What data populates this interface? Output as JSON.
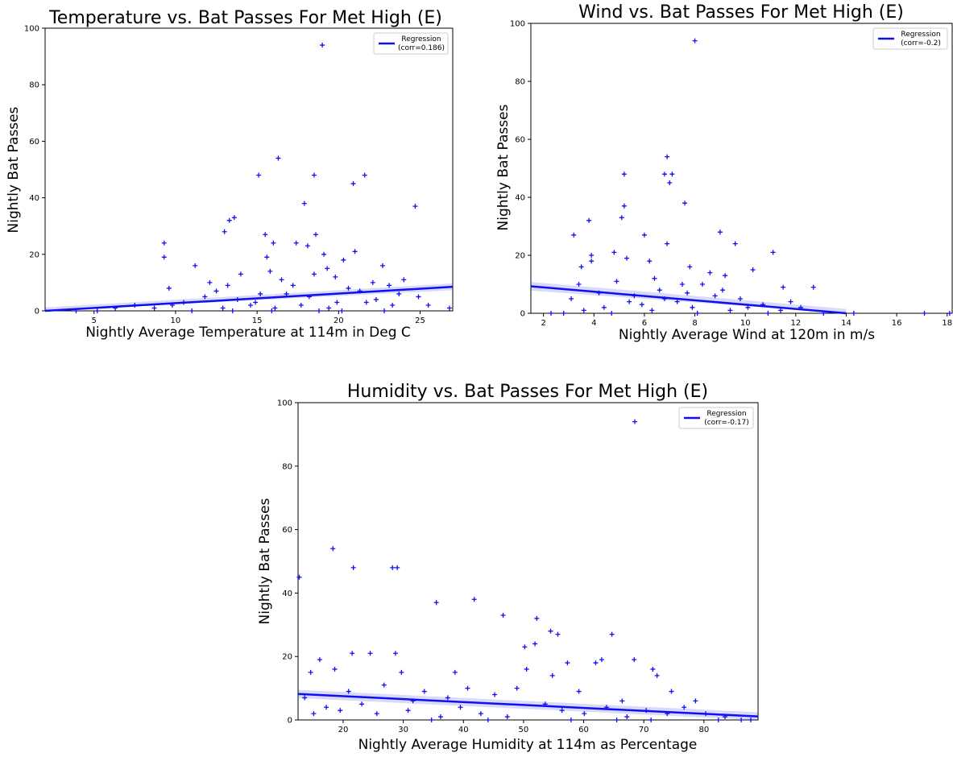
{
  "chart_data": [
    {
      "type": "scatter",
      "title": "Temperature vs. Bat Passes For Met High (E)",
      "xlabel": "Nightly Average Temperature at 114m in Deg C",
      "ylabel": "Nightly Bat Passes",
      "xlim": [
        2,
        27
      ],
      "ylim": [
        0,
        100
      ],
      "xticks": [
        5,
        10,
        15,
        20,
        25
      ],
      "yticks": [
        0,
        20,
        40,
        60,
        80,
        100
      ],
      "legend": {
        "line1": "Regression",
        "line2": "(corr=0.186)",
        "position": "top-right"
      },
      "regression": {
        "x": [
          2,
          27
        ],
        "y": [
          0.0,
          8.5
        ],
        "band": 1.2
      },
      "marker_color": "#1010ee",
      "points": [
        [
          19,
          94
        ],
        [
          16.3,
          54
        ],
        [
          15.1,
          48
        ],
        [
          18.5,
          48
        ],
        [
          21.6,
          48
        ],
        [
          20.9,
          45
        ],
        [
          17.9,
          38
        ],
        [
          24.7,
          37
        ],
        [
          13.6,
          33
        ],
        [
          13.3,
          32
        ],
        [
          13,
          28
        ],
        [
          15.5,
          27
        ],
        [
          18.6,
          27
        ],
        [
          9.3,
          24
        ],
        [
          16,
          24
        ],
        [
          17.4,
          24
        ],
        [
          18.1,
          23
        ],
        [
          9.3,
          19
        ],
        [
          15.6,
          19
        ],
        [
          19.1,
          20
        ],
        [
          21,
          21
        ],
        [
          11.2,
          16
        ],
        [
          22.7,
          16
        ],
        [
          20.3,
          18
        ],
        [
          15.8,
          14
        ],
        [
          18.5,
          13
        ],
        [
          14,
          13
        ],
        [
          19.3,
          15
        ],
        [
          9.6,
          8
        ],
        [
          12.1,
          10
        ],
        [
          13.2,
          9
        ],
        [
          16.5,
          11
        ],
        [
          22.1,
          10
        ],
        [
          19.8,
          12
        ],
        [
          17.2,
          9
        ],
        [
          24,
          11
        ],
        [
          12.5,
          7
        ],
        [
          15.2,
          6
        ],
        [
          21.3,
          7
        ],
        [
          23.1,
          9
        ],
        [
          10.5,
          3
        ],
        [
          11.8,
          5
        ],
        [
          13.8,
          4
        ],
        [
          14.6,
          2
        ],
        [
          16.8,
          6
        ],
        [
          18.2,
          5
        ],
        [
          19.9,
          3
        ],
        [
          20.6,
          8
        ],
        [
          22.3,
          4
        ],
        [
          23.7,
          6
        ],
        [
          25.5,
          2
        ],
        [
          8.7,
          1
        ],
        [
          7.5,
          2
        ],
        [
          6.3,
          1
        ],
        [
          5.2,
          0
        ],
        [
          3.9,
          0
        ],
        [
          9.8,
          2
        ],
        [
          12.9,
          1
        ],
        [
          14.9,
          3
        ],
        [
          16.1,
          1
        ],
        [
          17.7,
          2
        ],
        [
          19.4,
          1
        ],
        [
          21.7,
          3
        ],
        [
          23.3,
          2
        ],
        [
          24.9,
          5
        ],
        [
          26.8,
          1
        ],
        [
          11,
          0
        ],
        [
          13.5,
          0
        ],
        [
          15.9,
          0
        ],
        [
          18.8,
          0
        ],
        [
          20.2,
          0
        ],
        [
          22.8,
          0
        ]
      ]
    },
    {
      "type": "scatter",
      "title": "Wind vs. Bat Passes For Met High (E)",
      "xlabel": "Nightly Average Wind at 120m in m/s",
      "ylabel": "Nightly Bat Passes",
      "xlim": [
        1.5,
        18.2
      ],
      "ylim": [
        0,
        100
      ],
      "xticks": [
        2,
        4,
        6,
        8,
        10,
        12,
        14,
        16,
        18
      ],
      "yticks": [
        0,
        20,
        40,
        60,
        80,
        100
      ],
      "legend": {
        "line1": "Regression",
        "line2": "(corr=-0.2)",
        "position": "top-right"
      },
      "regression": {
        "x": [
          1.5,
          14
        ],
        "y": [
          9.3,
          0.0
        ],
        "band": 1.5
      },
      "marker_color": "#1010ee",
      "points": [
        [
          8,
          94
        ],
        [
          6.9,
          54
        ],
        [
          6.8,
          48
        ],
        [
          7.1,
          48
        ],
        [
          5.2,
          48
        ],
        [
          7,
          45
        ],
        [
          7.6,
          38
        ],
        [
          5.2,
          37
        ],
        [
          3.8,
          32
        ],
        [
          5.1,
          33
        ],
        [
          3.2,
          27
        ],
        [
          9,
          28
        ],
        [
          6,
          27
        ],
        [
          6.9,
          24
        ],
        [
          9.6,
          24
        ],
        [
          4.8,
          21
        ],
        [
          3.9,
          20
        ],
        [
          11.1,
          21
        ],
        [
          5.3,
          19
        ],
        [
          3.9,
          18
        ],
        [
          6.2,
          18
        ],
        [
          3.5,
          16
        ],
        [
          7.8,
          16
        ],
        [
          8.6,
          14
        ],
        [
          10.3,
          15
        ],
        [
          6.4,
          12
        ],
        [
          9.2,
          13
        ],
        [
          4.9,
          11
        ],
        [
          7.5,
          10
        ],
        [
          11.5,
          9
        ],
        [
          12.7,
          9
        ],
        [
          8.3,
          10
        ],
        [
          3.1,
          5
        ],
        [
          4.2,
          7
        ],
        [
          5.6,
          6
        ],
        [
          6.6,
          8
        ],
        [
          7.3,
          4
        ],
        [
          8.8,
          6
        ],
        [
          9.8,
          5
        ],
        [
          10.7,
          3
        ],
        [
          2.8,
          0
        ],
        [
          3.6,
          1
        ],
        [
          4.4,
          2
        ],
        [
          5.9,
          3
        ],
        [
          6.3,
          1
        ],
        [
          7.9,
          2
        ],
        [
          9.4,
          1
        ],
        [
          10.1,
          2
        ],
        [
          11.4,
          1
        ],
        [
          12.2,
          2
        ],
        [
          13.1,
          0
        ],
        [
          14.3,
          0
        ],
        [
          17.1,
          0
        ],
        [
          18.1,
          0
        ],
        [
          2.3,
          0
        ],
        [
          4.7,
          0
        ],
        [
          8.1,
          0
        ],
        [
          10.9,
          0
        ],
        [
          5.4,
          4
        ],
        [
          7.7,
          7
        ],
        [
          9.1,
          8
        ],
        [
          6.8,
          5
        ],
        [
          3.4,
          10
        ],
        [
          11.8,
          4
        ]
      ]
    },
    {
      "type": "scatter",
      "title": "Humidity vs. Bat Passes For Met High (E)",
      "xlabel": "Nightly Average Humidity at 114m as Percentage",
      "ylabel": "Nightly Bat Passes",
      "xlim": [
        12.5,
        89
      ],
      "ylim": [
        0,
        100
      ],
      "xticks": [
        20,
        30,
        40,
        50,
        60,
        70,
        80
      ],
      "yticks": [
        0,
        20,
        40,
        60,
        80,
        100
      ],
      "legend": {
        "line1": "Regression",
        "line2": "(corr=-0.17)",
        "position": "top-right"
      },
      "regression": {
        "x": [
          12.5,
          89
        ],
        "y": [
          8.2,
          1.1
        ],
        "band": 1.3
      },
      "marker_color": "#1010ee",
      "points": [
        [
          68.5,
          94
        ],
        [
          18.3,
          54
        ],
        [
          21.7,
          48
        ],
        [
          28.2,
          48
        ],
        [
          29,
          48
        ],
        [
          12.7,
          45
        ],
        [
          41.8,
          38
        ],
        [
          35.5,
          37
        ],
        [
          46.6,
          33
        ],
        [
          52.2,
          32
        ],
        [
          54.5,
          28
        ],
        [
          55.7,
          27
        ],
        [
          64.7,
          27
        ],
        [
          50.2,
          23
        ],
        [
          51.9,
          24
        ],
        [
          62,
          18
        ],
        [
          63,
          19
        ],
        [
          68.4,
          19
        ],
        [
          71.5,
          16
        ],
        [
          72.2,
          14
        ],
        [
          21.5,
          21
        ],
        [
          24.5,
          21
        ],
        [
          28.7,
          21
        ],
        [
          16.1,
          19
        ],
        [
          18.6,
          16
        ],
        [
          14.6,
          15
        ],
        [
          29.7,
          15
        ],
        [
          38.6,
          15
        ],
        [
          50.5,
          16
        ],
        [
          54.8,
          14
        ],
        [
          57.3,
          18
        ],
        [
          74.6,
          9
        ],
        [
          26.8,
          11
        ],
        [
          33.5,
          9
        ],
        [
          40.7,
          10
        ],
        [
          45.2,
          8
        ],
        [
          48.9,
          10
        ],
        [
          59.2,
          9
        ],
        [
          66.4,
          6
        ],
        [
          78.6,
          6
        ],
        [
          15.1,
          2
        ],
        [
          17.2,
          4
        ],
        [
          19.5,
          3
        ],
        [
          23.1,
          5
        ],
        [
          25.6,
          2
        ],
        [
          30.8,
          3
        ],
        [
          36.2,
          1
        ],
        [
          39.5,
          4
        ],
        [
          42.9,
          2
        ],
        [
          47.3,
          1
        ],
        [
          53.6,
          5
        ],
        [
          56.4,
          3
        ],
        [
          60.1,
          2
        ],
        [
          63.8,
          4
        ],
        [
          67.2,
          1
        ],
        [
          70.4,
          3
        ],
        [
          73.9,
          2
        ],
        [
          76.7,
          4
        ],
        [
          80.3,
          2
        ],
        [
          83.5,
          1
        ],
        [
          86.2,
          0
        ],
        [
          13.6,
          7
        ],
        [
          20.9,
          9
        ],
        [
          31.6,
          6
        ],
        [
          34.7,
          0
        ],
        [
          44.1,
          0
        ],
        [
          57.9,
          0
        ],
        [
          65.5,
          0
        ],
        [
          71.2,
          0
        ],
        [
          82.4,
          0
        ],
        [
          87.8,
          0
        ],
        [
          37.4,
          7
        ]
      ]
    }
  ]
}
